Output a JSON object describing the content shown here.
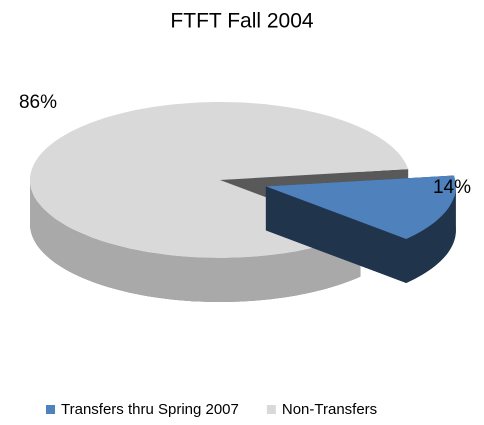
{
  "chart_data": {
    "type": "pie",
    "title": "FTFT Fall 2004",
    "categories": [
      "Transfers thru Spring 2007",
      "Non-Transfers"
    ],
    "values": [
      14,
      86
    ],
    "value_labels": [
      "14%",
      "86%"
    ],
    "colors": [
      "#4f81bd",
      "#d9d9d9"
    ],
    "legend": "bottom"
  }
}
